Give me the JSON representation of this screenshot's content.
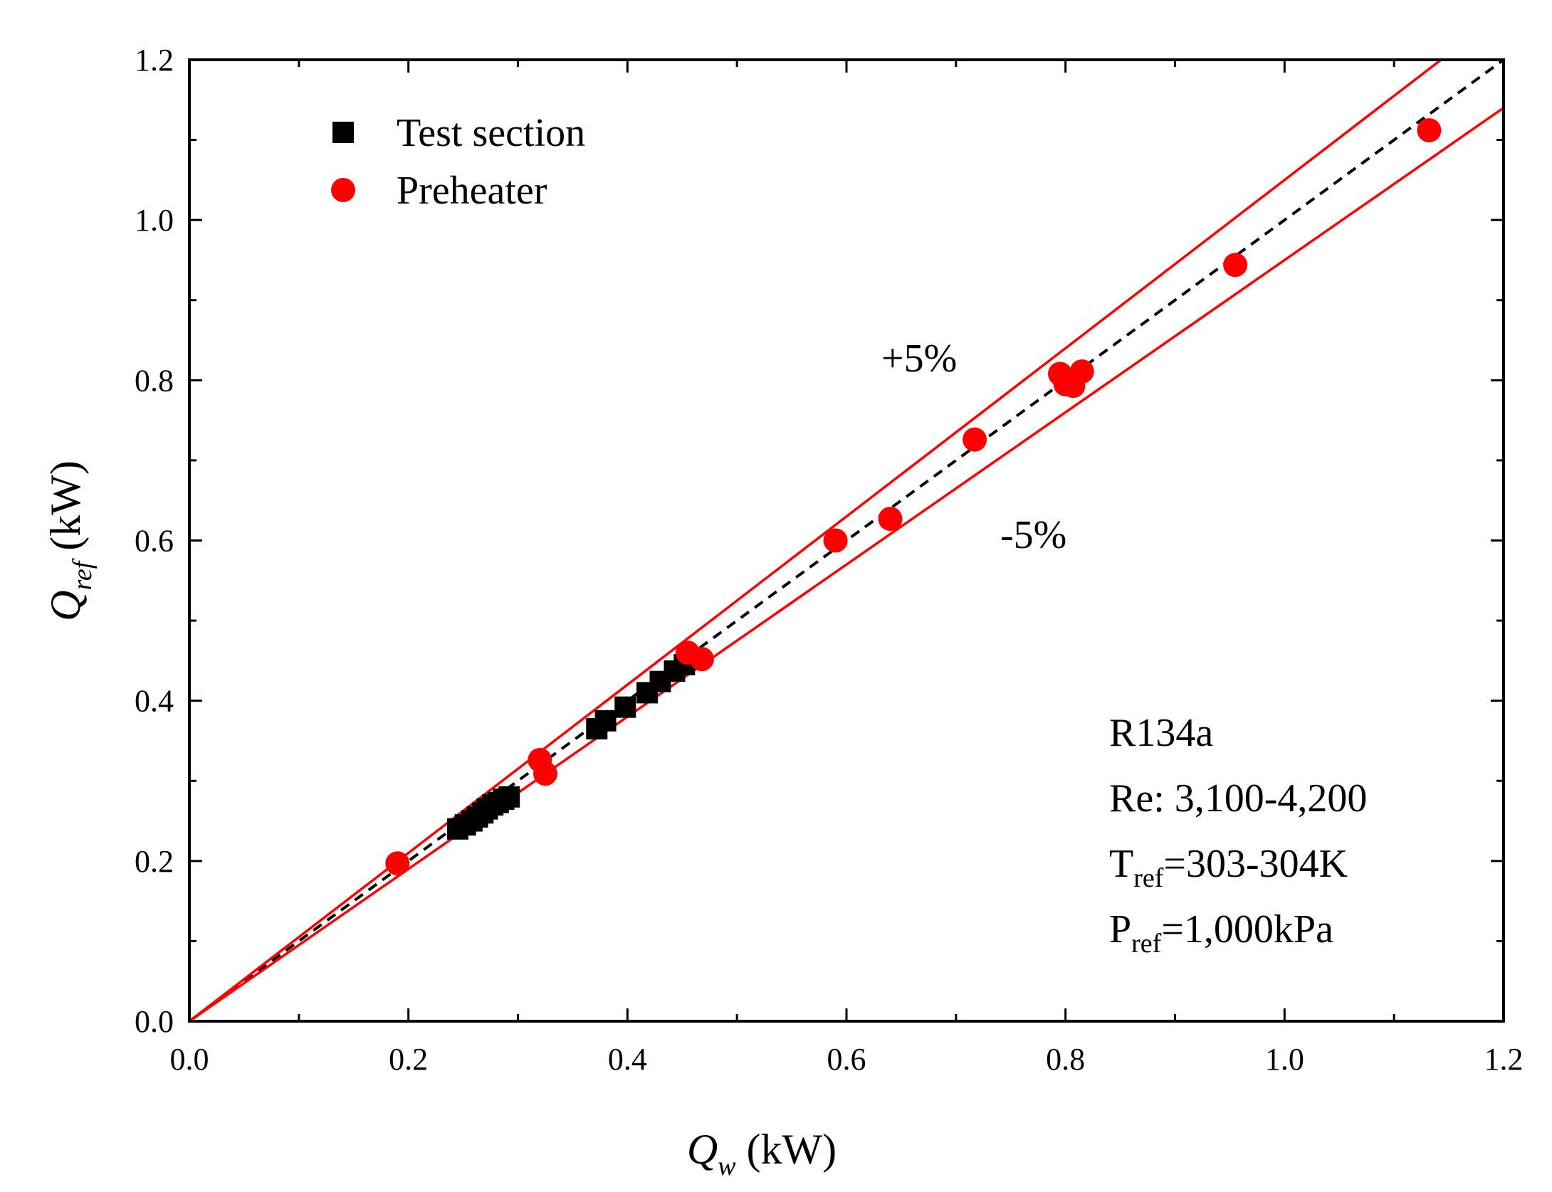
{
  "chart_data": {
    "type": "scatter",
    "title": "",
    "xlabel": {
      "symbol": "Q",
      "subscript": "w",
      "unit": " (kW)"
    },
    "ylabel": {
      "symbol": "Q",
      "subscript": "ref",
      "unit": " (kW)"
    },
    "xlim": [
      0.0,
      1.2
    ],
    "ylim": [
      0.0,
      1.2
    ],
    "x_ticks": [
      0.0,
      0.2,
      0.4,
      0.6,
      0.8,
      1.0,
      1.2
    ],
    "y_ticks": [
      0.0,
      0.2,
      0.4,
      0.6,
      0.8,
      1.0,
      1.2
    ],
    "x_tick_labels": [
      "0.0",
      "0.2",
      "0.4",
      "0.6",
      "0.8",
      "1.0",
      "1.2"
    ],
    "y_tick_labels": [
      "0.0",
      "0.2",
      "0.4",
      "0.6",
      "0.8",
      "1.0",
      "1.2"
    ],
    "grid": false,
    "legend_position": "top-left",
    "series": [
      {
        "name": "Test section",
        "marker": "square",
        "color": "#000000",
        "points": [
          [
            0.245,
            0.24
          ],
          [
            0.252,
            0.245
          ],
          [
            0.258,
            0.25
          ],
          [
            0.263,
            0.255
          ],
          [
            0.268,
            0.26
          ],
          [
            0.272,
            0.265
          ],
          [
            0.277,
            0.27
          ],
          [
            0.282,
            0.273
          ],
          [
            0.287,
            0.277
          ],
          [
            0.292,
            0.28
          ],
          [
            0.372,
            0.365
          ],
          [
            0.38,
            0.375
          ],
          [
            0.398,
            0.392
          ],
          [
            0.418,
            0.41
          ],
          [
            0.43,
            0.424
          ],
          [
            0.443,
            0.437
          ],
          [
            0.452,
            0.445
          ]
        ]
      },
      {
        "name": "Preheater",
        "marker": "circle",
        "color": "#ff0000",
        "points": [
          [
            0.19,
            0.197
          ],
          [
            0.32,
            0.326
          ],
          [
            0.325,
            0.309
          ],
          [
            0.455,
            0.46
          ],
          [
            0.468,
            0.452
          ],
          [
            0.59,
            0.6
          ],
          [
            0.64,
            0.627
          ],
          [
            0.717,
            0.726
          ],
          [
            0.795,
            0.808
          ],
          [
            0.8,
            0.795
          ],
          [
            0.807,
            0.793
          ],
          [
            0.815,
            0.811
          ],
          [
            0.955,
            0.944
          ],
          [
            1.132,
            1.112
          ]
        ]
      }
    ],
    "reference_lines": [
      {
        "name": "parity",
        "slope": 1.0,
        "style": "dashed",
        "color": "#000000"
      },
      {
        "name": "+5%",
        "slope": 1.05,
        "style": "solid",
        "color": "#ff0000"
      },
      {
        "name": "-5%",
        "slope": 0.95,
        "style": "solid",
        "color": "#ff0000"
      }
    ],
    "band_labels": {
      "plus": "+5%",
      "minus": "-5%"
    },
    "annotations": {
      "line1": "R134a",
      "line2": "Re: 3,100-4,200",
      "line3": {
        "base": "T",
        "subscript": "ref",
        "rest": "=303-304K"
      },
      "line4": {
        "base": "P",
        "subscript": "ref",
        "rest": "=1,000kPa"
      }
    }
  }
}
